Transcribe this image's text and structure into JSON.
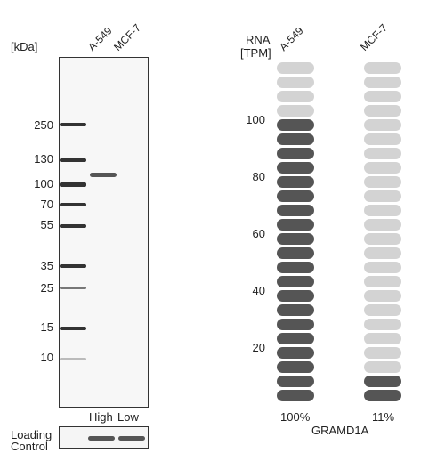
{
  "blot": {
    "unit_label": "[kDa]",
    "lanes": [
      "A-549",
      "MCF-7"
    ],
    "markers": [
      "250",
      "130",
      "100",
      "70",
      "55",
      "35",
      "25",
      "15",
      "10"
    ],
    "expression_labels": [
      "High",
      "Low"
    ],
    "loading_control": [
      "Loading",
      "Control"
    ]
  },
  "rna": {
    "axis_title": [
      "RNA",
      "[TPM]"
    ],
    "cell_lines": [
      "A-549",
      "MCF-7"
    ],
    "ticks": [
      "100",
      "80",
      "60",
      "40",
      "20"
    ],
    "percent_labels": [
      "100%",
      "11%"
    ],
    "gene": "GRAMD1A",
    "total_segments": 24,
    "filled_segments": [
      20,
      2
    ],
    "colors": {
      "filled": "#555555",
      "empty": "#d3d3d3"
    }
  }
}
